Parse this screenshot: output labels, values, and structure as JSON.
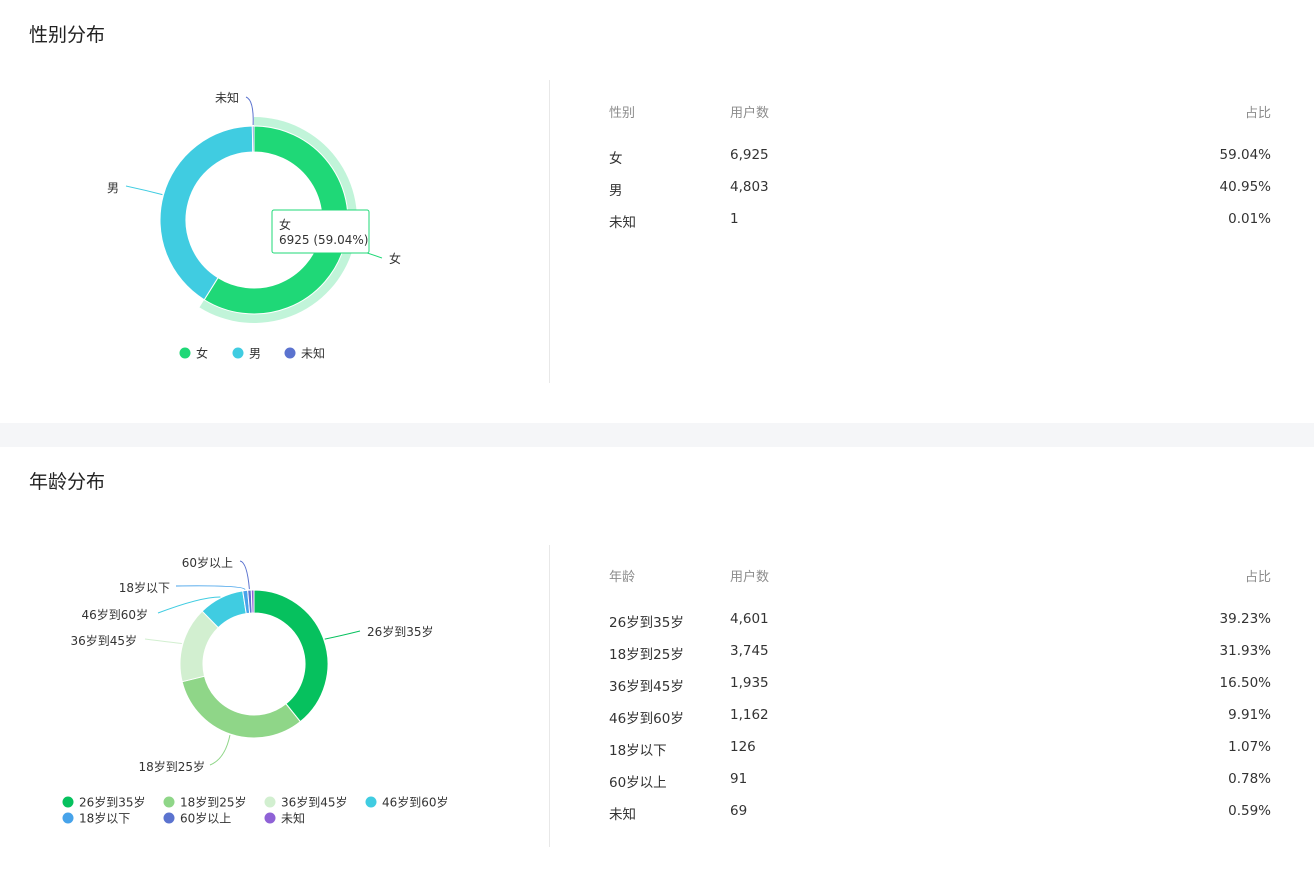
{
  "gender": {
    "title": "性别分布",
    "table": {
      "headers": [
        "性别",
        "用户数",
        "占比"
      ],
      "rows": [
        {
          "label": "女",
          "count": "6,925",
          "pct": "59.04%"
        },
        {
          "label": "男",
          "count": "4,803",
          "pct": "40.95%"
        },
        {
          "label": "未知",
          "count": "1",
          "pct": "0.01%"
        }
      ]
    },
    "tooltip": {
      "title": "女",
      "value": "6925 (59.04%)"
    }
  },
  "age": {
    "title": "年龄分布",
    "table": {
      "headers": [
        "年龄",
        "用户数",
        "占比"
      ],
      "rows": [
        {
          "label": "26岁到35岁",
          "count": "4,601",
          "pct": "39.23%"
        },
        {
          "label": "18岁到25岁",
          "count": "3,745",
          "pct": "31.93%"
        },
        {
          "label": "36岁到45岁",
          "count": "1,935",
          "pct": "16.50%"
        },
        {
          "label": "46岁到60岁",
          "count": "1,162",
          "pct": "9.91%"
        },
        {
          "label": "18岁以下",
          "count": "126",
          "pct": "1.07%"
        },
        {
          "label": "60岁以上",
          "count": "91",
          "pct": "0.78%"
        },
        {
          "label": "未知",
          "count": "69",
          "pct": "0.59%"
        }
      ]
    }
  },
  "chart_data": [
    {
      "type": "pie",
      "donut": true,
      "categories": [
        "女",
        "男",
        "未知"
      ],
      "values": [
        6925,
        4803,
        1
      ],
      "colors": [
        "#1fd877",
        "#40cce1",
        "#5b73cf"
      ],
      "highlighted": "女",
      "legend_position": "bottom"
    },
    {
      "type": "pie",
      "donut": true,
      "categories": [
        "26岁到35岁",
        "18岁到25岁",
        "36岁到45岁",
        "46岁到60岁",
        "18岁以下",
        "60岁以上",
        "未知"
      ],
      "values": [
        4601,
        3745,
        1935,
        1162,
        126,
        91,
        69
      ],
      "colors": [
        "#06c15e",
        "#8fd688",
        "#d2efd0",
        "#40cce1",
        "#47a3ea",
        "#5b73cf",
        "#8f62d6"
      ],
      "legend_position": "bottom"
    }
  ]
}
